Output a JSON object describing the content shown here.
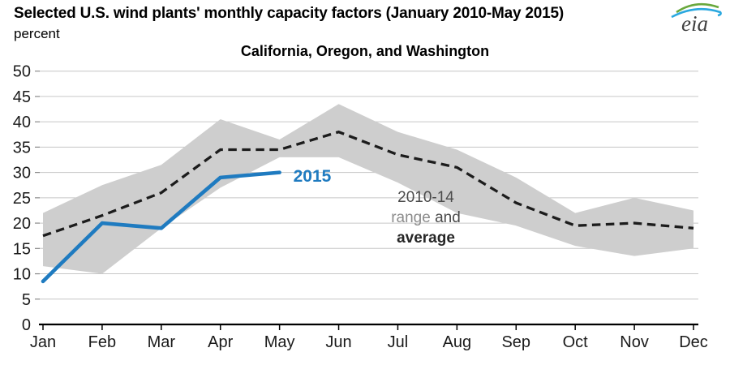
{
  "header": {
    "title": "Selected U.S. wind plants' monthly capacity factors (January 2010-May 2015)",
    "units_label": "percent",
    "subtitle": "California, Oregon, and Washington",
    "logo_text": "eia"
  },
  "chart_data": {
    "type": "line",
    "title": "California, Oregon, and Washington",
    "ylabel": "percent",
    "ylim": [
      0,
      50
    ],
    "ytick_step": 5,
    "grid": "horizontal",
    "legend_position": "inline-annotations",
    "categories": [
      "Jan",
      "Feb",
      "Mar",
      "Apr",
      "May",
      "Jun",
      "Jul",
      "Aug",
      "Sep",
      "Oct",
      "Nov",
      "Dec"
    ],
    "series": [
      {
        "name": "2010-14 range upper",
        "role": "band_upper",
        "values": [
          22,
          27.5,
          31.5,
          40.5,
          36.5,
          43.5,
          38,
          34.5,
          29,
          22,
          25,
          22.5
        ]
      },
      {
        "name": "2010-14 range lower",
        "role": "band_lower",
        "values": [
          11.5,
          10,
          19,
          27,
          33,
          33,
          28,
          22,
          19.5,
          15.5,
          13.5,
          15
        ]
      },
      {
        "name": "2010-14 average",
        "role": "average",
        "line_style": "dashed",
        "values": [
          17.5,
          21.5,
          26,
          34.5,
          34.5,
          38,
          33.5,
          31,
          24,
          19.5,
          20,
          19
        ]
      },
      {
        "name": "2015",
        "role": "current",
        "line_style": "solid",
        "values": [
          8.5,
          20,
          19,
          29,
          30
        ]
      }
    ],
    "colors": {
      "band": "#cecece",
      "average_line": "#1c1c1c",
      "current_line": "#1f7bc0",
      "gridline": "#c6c6c6",
      "axis": "#000000"
    }
  },
  "annotations": {
    "series_2015_label": "2015",
    "range_line1": "2010-14",
    "range_word_gray": "range",
    "range_word_dark": " and",
    "range_line3": "average"
  }
}
